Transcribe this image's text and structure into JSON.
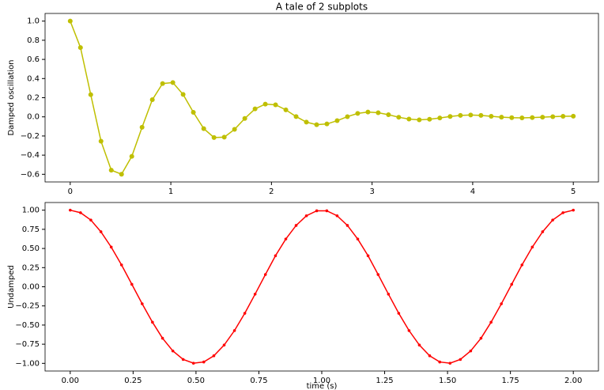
{
  "chart_data": [
    {
      "type": "line",
      "title": "A tale of 2 subplots",
      "ylabel": "Damped oscillation",
      "x": [
        0,
        0.102,
        0.204,
        0.306,
        0.408,
        0.51,
        0.612,
        0.714,
        0.816,
        0.918,
        1.02,
        1.122,
        1.224,
        1.327,
        1.429,
        1.531,
        1.633,
        1.735,
        1.837,
        1.939,
        2.041,
        2.143,
        2.245,
        2.347,
        2.449,
        2.551,
        2.653,
        2.755,
        2.857,
        2.959,
        3.061,
        3.163,
        3.265,
        3.367,
        3.469,
        3.571,
        3.673,
        3.776,
        3.878,
        3.98,
        4.082,
        4.184,
        4.286,
        4.388,
        4.49,
        4.592,
        4.694,
        4.796,
        4.898,
        5.0
      ],
      "series": [
        {
          "color": "#bfbf00",
          "marker": "o",
          "values": [
            1.0,
            0.724,
            0.232,
            -0.254,
            -0.557,
            -0.599,
            -0.413,
            -0.109,
            0.179,
            0.348,
            0.358,
            0.234,
            0.047,
            -0.123,
            -0.216,
            -0.212,
            -0.131,
            -0.017,
            0.083,
            0.133,
            0.126,
            0.073,
            0.003,
            -0.055,
            -0.082,
            -0.074,
            -0.04,
            0.002,
            0.036,
            0.05,
            0.043,
            0.022,
            -0.004,
            -0.023,
            -0.031,
            -0.025,
            -0.012,
            0.004,
            0.015,
            0.019,
            0.015,
            0.006,
            -0.003,
            -0.009,
            -0.011,
            -0.008,
            -0.003,
            0.002,
            0.006,
            0.007
          ]
        }
      ],
      "xlim": [
        -0.25,
        5.25
      ],
      "ylim": [
        -0.68,
        1.08
      ],
      "xticks": [
        0,
        1,
        2,
        3,
        4,
        5
      ],
      "yticks": [
        {
          "value": -0.6,
          "label": "−0.6"
        },
        {
          "value": -0.4,
          "label": "−0.4"
        },
        {
          "value": -0.2,
          "label": "−0.2"
        },
        {
          "value": 0,
          "label": "0.0"
        },
        {
          "value": 0.2,
          "label": "0.2"
        },
        {
          "value": 0.4,
          "label": "0.4"
        },
        {
          "value": 0.6,
          "label": "0.6"
        },
        {
          "value": 0.8,
          "label": "0.8"
        },
        {
          "value": 1,
          "label": "1.0"
        }
      ]
    },
    {
      "type": "line",
      "xlabel": "time (s)",
      "ylabel": "Undamped",
      "x": [
        0,
        0.041,
        0.082,
        0.122,
        0.163,
        0.204,
        0.245,
        0.286,
        0.327,
        0.367,
        0.408,
        0.449,
        0.49,
        0.531,
        0.571,
        0.612,
        0.653,
        0.694,
        0.735,
        0.776,
        0.816,
        0.857,
        0.898,
        0.939,
        0.98,
        1.02,
        1.061,
        1.102,
        1.143,
        1.184,
        1.224,
        1.265,
        1.306,
        1.347,
        1.388,
        1.429,
        1.469,
        1.51,
        1.551,
        1.592,
        1.633,
        1.673,
        1.714,
        1.755,
        1.796,
        1.837,
        1.878,
        1.918,
        1.959,
        2.0
      ],
      "series": [
        {
          "color": "#ff0000",
          "marker": ".",
          "values": [
            1,
            0.967,
            0.871,
            0.718,
            0.518,
            0.285,
            0.032,
            -0.222,
            -0.463,
            -0.672,
            -0.838,
            -0.949,
            -0.998,
            -0.982,
            -0.901,
            -0.761,
            -0.572,
            -0.346,
            -0.096,
            0.16,
            0.405,
            0.623,
            0.801,
            0.927,
            0.992,
            0.992,
            0.927,
            0.801,
            0.623,
            0.405,
            0.16,
            -0.096,
            -0.346,
            -0.572,
            -0.761,
            -0.901,
            -0.982,
            -0.998,
            -0.949,
            -0.838,
            -0.672,
            -0.463,
            -0.222,
            0.032,
            0.285,
            0.518,
            0.718,
            0.871,
            0.967,
            1
          ]
        }
      ],
      "xlim": [
        -0.1,
        2.1
      ],
      "ylim": [
        -1.1,
        1.1
      ],
      "xticks": [
        {
          "value": 0,
          "label": "0.00"
        },
        {
          "value": 0.25,
          "label": "0.25"
        },
        {
          "value": 0.5,
          "label": "0.50"
        },
        {
          "value": 0.75,
          "label": "0.75"
        },
        {
          "value": 1,
          "label": "1.00"
        },
        {
          "value": 1.25,
          "label": "1.25"
        },
        {
          "value": 1.5,
          "label": "1.50"
        },
        {
          "value": 1.75,
          "label": "1.75"
        },
        {
          "value": 2,
          "label": "2.00"
        }
      ],
      "yticks": [
        {
          "value": -1,
          "label": "−1.00"
        },
        {
          "value": -0.75,
          "label": "−0.75"
        },
        {
          "value": -0.5,
          "label": "−0.50"
        },
        {
          "value": -0.25,
          "label": "−0.25"
        },
        {
          "value": 0,
          "label": "0.00"
        },
        {
          "value": 0.25,
          "label": "0.25"
        },
        {
          "value": 0.5,
          "label": "0.50"
        },
        {
          "value": 0.75,
          "label": "0.75"
        },
        {
          "value": 1,
          "label": "1.00"
        }
      ]
    }
  ]
}
